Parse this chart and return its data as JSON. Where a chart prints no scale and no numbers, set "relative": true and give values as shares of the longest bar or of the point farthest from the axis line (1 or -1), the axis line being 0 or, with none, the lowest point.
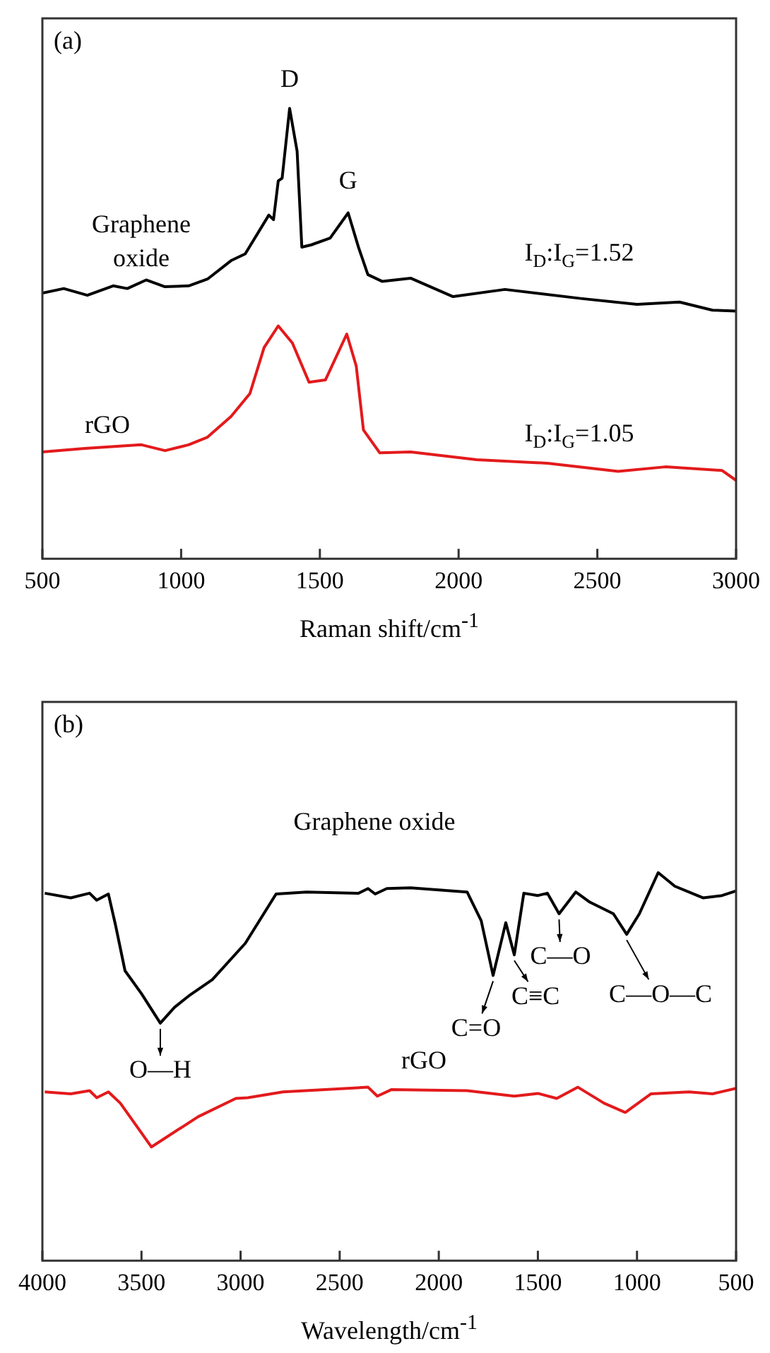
{
  "chart_data": [
    {
      "type": "line",
      "title": "(a)",
      "xlabel": "Raman shift/cm$^{-1}$",
      "relative": true,
      "marker": "none",
      "line_style": "solid",
      "xlim": [
        500,
        3000
      ],
      "xticks": [
        500,
        1000,
        1500,
        2000,
        2500,
        3000
      ],
      "series": [
        {
          "name": "Graphene oxide",
          "color": "#000000",
          "x": [
            500,
            577,
            662,
            755,
            806,
            874,
            942,
            1027,
            1095,
            1180,
            1231,
            1316,
            1333,
            1350,
            1364,
            1391,
            1418,
            1435,
            1469,
            1537,
            1602,
            1639,
            1673,
            1724,
            1827,
            1980,
            2167,
            2439,
            2643,
            2796,
            2915,
            3000
          ],
          "values": [
            0.59,
            0.6,
            0.585,
            0.606,
            0.6,
            0.619,
            0.604,
            0.606,
            0.621,
            0.662,
            0.677,
            0.763,
            0.753,
            0.839,
            0.845,
            1.0,
            0.905,
            0.692,
            0.697,
            0.712,
            0.768,
            0.692,
            0.631,
            0.616,
            0.623,
            0.582,
            0.598,
            0.578,
            0.565,
            0.57,
            0.552,
            0.55
          ]
        },
        {
          "name": "rGO",
          "color": "#e31a1c",
          "x": [
            500,
            653,
            857,
            942,
            1027,
            1095,
            1180,
            1248,
            1299,
            1350,
            1401,
            1461,
            1520,
            1597,
            1631,
            1657,
            1716,
            1827,
            2065,
            2320,
            2575,
            2745,
            2949,
            3000
          ],
          "values": [
            0.237,
            0.245,
            0.253,
            0.24,
            0.253,
            0.27,
            0.316,
            0.367,
            0.469,
            0.517,
            0.479,
            0.392,
            0.397,
            0.499,
            0.428,
            0.286,
            0.235,
            0.237,
            0.22,
            0.212,
            0.194,
            0.204,
            0.196,
            0.174
          ]
        }
      ],
      "annotations": [
        {
          "text": "D",
          "x": 1391,
          "y": 1.0
        },
        {
          "text": "G",
          "x": 1602,
          "y": 0.768
        },
        "I$_{D}$:I$_{G}$=1.52",
        "I$_{D}$:I$_{G}$=1.05"
      ]
    },
    {
      "type": "line",
      "title": "(b)",
      "xlabel": "Wavelength/cm$^{-1}$",
      "relative": true,
      "marker": "none",
      "line_style": "solid",
      "xlim": [
        4000,
        500
      ],
      "xticks": [
        4000,
        3500,
        3000,
        2500,
        2000,
        1500,
        1000,
        500
      ],
      "series": [
        {
          "name": "Graphene oxide",
          "color": "#000000",
          "x": [
            3988,
            3857,
            3762,
            3726,
            3667,
            3631,
            3583,
            3500,
            3405,
            3333,
            3262,
            3143,
            2976,
            2821,
            2667,
            2405,
            2357,
            2321,
            2262,
            2143,
            1857,
            1786,
            1726,
            1662,
            1619,
            1571,
            1500,
            1452,
            1393,
            1309,
            1238,
            1119,
            1052,
            988,
            893,
            809,
            667,
            571,
            500
          ],
          "values": [
            0.947,
            0.935,
            0.947,
            0.929,
            0.945,
            0.865,
            0.747,
            0.688,
            0.612,
            0.653,
            0.682,
            0.724,
            0.818,
            0.945,
            0.95,
            0.947,
            0.959,
            0.945,
            0.959,
            0.961,
            0.95,
            0.876,
            0.735,
            0.871,
            0.788,
            0.947,
            0.941,
            0.947,
            0.894,
            0.95,
            0.924,
            0.894,
            0.841,
            0.894,
            1.0,
            0.965,
            0.935,
            0.941,
            0.953
          ]
        },
        {
          "name": "rGO",
          "color": "#e31a1c",
          "x": [
            3988,
            3857,
            3762,
            3726,
            3667,
            3607,
            3450,
            3214,
            3024,
            2964,
            2786,
            2357,
            2310,
            2238,
            1857,
            1619,
            1500,
            1405,
            1298,
            1167,
            1059,
            929,
            738,
            619,
            500
          ],
          "values": [
            0.435,
            0.43,
            0.438,
            0.42,
            0.435,
            0.406,
            0.293,
            0.371,
            0.418,
            0.42,
            0.435,
            0.447,
            0.424,
            0.441,
            0.438,
            0.424,
            0.431,
            0.418,
            0.447,
            0.406,
            0.382,
            0.43,
            0.435,
            0.43,
            0.444
          ]
        }
      ],
      "annotations": [
        {
          "text": "O—H",
          "x": 3405,
          "y": 0.612
        },
        {
          "text": "C=O",
          "x": 1726,
          "y": 0.735
        },
        {
          "text": "C≡C",
          "x": 1619,
          "y": 0.788
        },
        {
          "text": "C—O",
          "x": 1393,
          "y": 0.894
        },
        {
          "text": "C—O—C",
          "x": 1052,
          "y": 0.841
        }
      ]
    }
  ]
}
